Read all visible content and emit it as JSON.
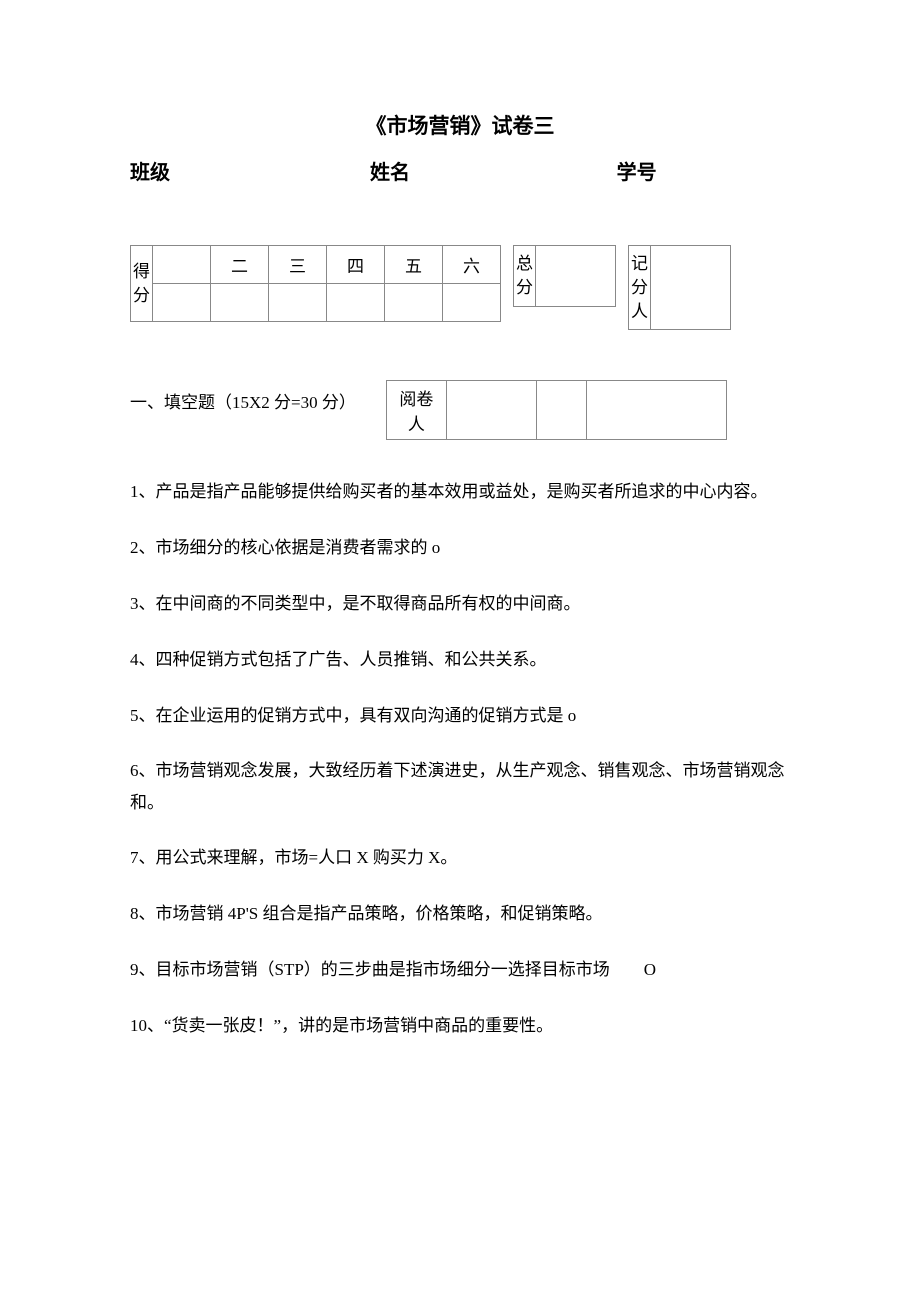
{
  "title": "《市场营销》试卷三",
  "header": {
    "class_label": "班级",
    "name_label": "姓名",
    "id_label": "学号"
  },
  "score_table": {
    "row_label": "得分",
    "columns": [
      "",
      "二",
      "三",
      "四",
      "五",
      "六"
    ],
    "total_label": "总分",
    "recorder_label": "记分人"
  },
  "section1": {
    "title": "一、填空题（15X2 分=30 分）",
    "grader_label": "阅卷人"
  },
  "questions": {
    "q1": "1、产品是指产品能够提供给购买者的基本效用或益处，是购买者所追求的中心内容。",
    "q2": "2、市场细分的核心依据是消费者需求的 o",
    "q3": "3、在中间商的不同类型中，是不取得商品所有权的中间商。",
    "q4": "4、四种促销方式包括了广告、人员推销、和公共关系。",
    "q5": "5、在企业运用的促销方式中，具有双向沟通的促销方式是 o",
    "q6": "6、市场营销观念发展，大致经历着下述演进史，从生产观念、销售观念、市场营销观念和。",
    "q7": "7、用公式来理解，市场=人口 X 购买力 X。",
    "q8": "8、市场营销 4P'S 组合是指产品策略，价格策略，和促销策略。",
    "q9": "9、目标市场营销（STP）的三步曲是指市场细分一选择目标市场  O",
    "q10": "10、“货卖一张皮！”，讲的是市场营销中商品的重要性。"
  }
}
